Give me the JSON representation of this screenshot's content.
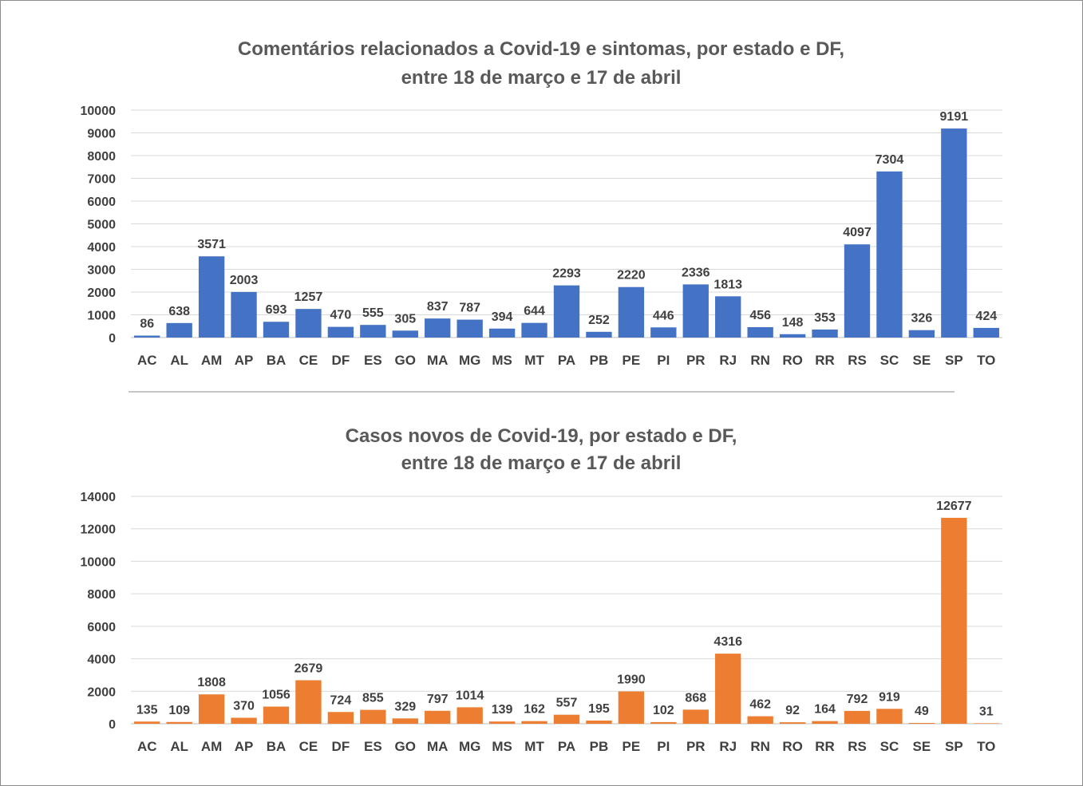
{
  "chart_data": [
    {
      "type": "bar",
      "title": [
        "Comentários relacionados a Covid-19 e sintomas, por estado e DF,",
        "entre 18 de março e 17 de abril"
      ],
      "xlabel": "",
      "ylabel": "",
      "ylim": [
        0,
        10000
      ],
      "yticks": [
        0,
        1000,
        2000,
        3000,
        4000,
        5000,
        6000,
        7000,
        8000,
        9000,
        10000
      ],
      "grid": true,
      "color": "#4472C4",
      "categories": [
        "AC",
        "AL",
        "AM",
        "AP",
        "BA",
        "CE",
        "DF",
        "ES",
        "GO",
        "MA",
        "MG",
        "MS",
        "MT",
        "PA",
        "PB",
        "PE",
        "PI",
        "PR",
        "RJ",
        "RN",
        "RO",
        "RR",
        "RS",
        "SC",
        "SE",
        "SP",
        "TO"
      ],
      "values": [
        86,
        638,
        3571,
        2003,
        693,
        1257,
        470,
        555,
        305,
        837,
        787,
        394,
        644,
        2293,
        252,
        2220,
        446,
        2336,
        1813,
        456,
        148,
        353,
        4097,
        7304,
        326,
        9191,
        424
      ]
    },
    {
      "type": "bar",
      "title": [
        "Casos novos de Covid-19, por estado e DF,",
        "entre 18 de março e 17 de abril"
      ],
      "xlabel": "",
      "ylabel": "",
      "ylim": [
        0,
        14000
      ],
      "yticks": [
        0,
        2000,
        4000,
        6000,
        8000,
        10000,
        12000,
        14000
      ],
      "grid": true,
      "color": "#ED7D31",
      "categories": [
        "AC",
        "AL",
        "AM",
        "AP",
        "BA",
        "CE",
        "DF",
        "ES",
        "GO",
        "MA",
        "MG",
        "MS",
        "MT",
        "PA",
        "PB",
        "PE",
        "PI",
        "PR",
        "RJ",
        "RN",
        "RO",
        "RR",
        "RS",
        "SC",
        "SE",
        "SP",
        "TO"
      ],
      "values": [
        135,
        109,
        1808,
        370,
        1056,
        2679,
        724,
        855,
        329,
        797,
        1014,
        139,
        162,
        557,
        195,
        1990,
        102,
        868,
        4316,
        462,
        92,
        164,
        792,
        919,
        49,
        12677,
        31
      ]
    }
  ]
}
